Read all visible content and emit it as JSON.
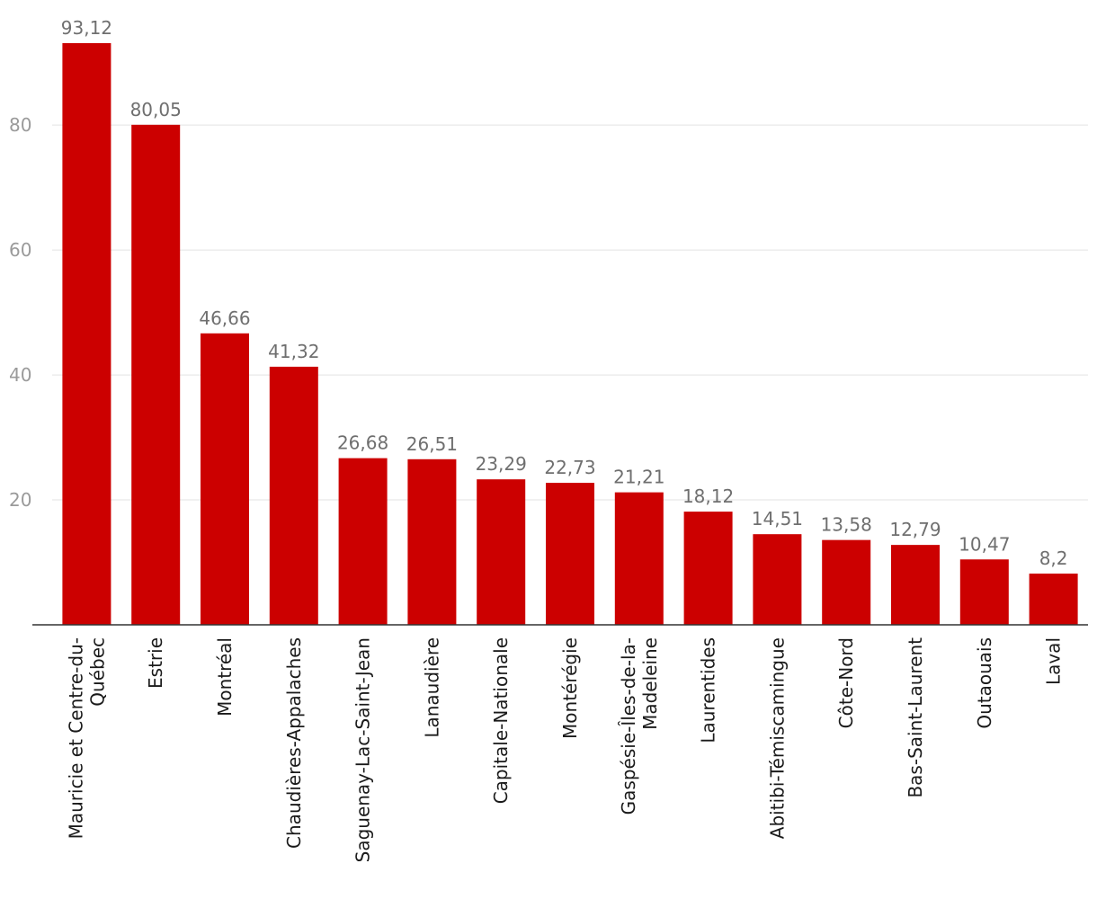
{
  "chart_data": {
    "type": "bar",
    "title": "",
    "xlabel": "",
    "ylabel": "",
    "ylim": [
      0,
      93.12
    ],
    "grid": true,
    "bar_color": "#cc0000",
    "y_ticks": [
      20,
      40,
      60,
      80
    ],
    "y_tick_labels": [
      "20",
      "40",
      "60",
      "80"
    ],
    "categories": [
      "Mauricie et Centre-du-Québec",
      "Estrie",
      "Montréal",
      "Chaudières-Appalaches",
      "Saguenay-Lac-Saint-Jean",
      "Lanaudière",
      "Capitale-Nationale",
      "Montérégie",
      "Gaspésie-Îles-de-la-Madeleine",
      "Laurentides",
      "Abitibi-Témiscamingue",
      "Côte-Nord",
      "Bas-Saint-Laurent",
      "Outaouais",
      "Laval"
    ],
    "category_label_lines": [
      [
        "Mauricie et Centre-du-",
        "Québec"
      ],
      [
        "Estrie"
      ],
      [
        "Montréal"
      ],
      [
        "Chaudières-Appalaches"
      ],
      [
        "Saguenay-Lac-Saint-Jean"
      ],
      [
        "Lanaudière"
      ],
      [
        "Capitale-Nationale"
      ],
      [
        "Montérégie"
      ],
      [
        "Gaspésie-Îles-de-la-",
        "Madeleine"
      ],
      [
        "Laurentides"
      ],
      [
        "Abitibi-Témiscamingue"
      ],
      [
        "Côte-Nord"
      ],
      [
        "Bas-Saint-Laurent"
      ],
      [
        "Outaouais"
      ],
      [
        "Laval"
      ]
    ],
    "values": [
      93.12,
      80.05,
      46.66,
      41.32,
      26.68,
      26.51,
      23.29,
      22.73,
      21.21,
      18.12,
      14.51,
      13.58,
      12.79,
      10.47,
      8.2
    ],
    "value_labels": [
      "93,12",
      "80,05",
      "46,66",
      "41,32",
      "26,68",
      "26,51",
      "23,29",
      "22,73",
      "21,21",
      "18,12",
      "14,51",
      "13,58",
      "12,79",
      "10,47",
      "8,2"
    ]
  }
}
